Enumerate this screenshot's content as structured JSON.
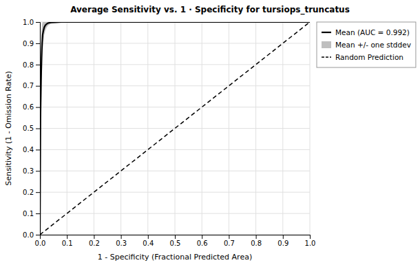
{
  "chart_data": {
    "type": "line",
    "title": "Average Sensitivity vs. 1 · Specificity for tursiops_truncatus",
    "xlabel": "1 - Specificity (Fractional Predicted Area)",
    "ylabel": "Sensitivity (1 - Omission Rate)",
    "xlim": [
      0.0,
      1.0
    ],
    "ylim": [
      0.0,
      1.0
    ],
    "xticks": [
      {
        "value": 0.0,
        "label": "0.0"
      },
      0.1,
      0.2,
      0.3,
      0.4,
      0.5,
      0.6,
      0.7,
      0.8,
      0.9,
      {
        "value": 1.0,
        "label": "1.0"
      }
    ],
    "yticks": [
      {
        "value": 0.0,
        "label": "0.0"
      },
      0.1,
      0.2,
      0.3,
      0.4,
      0.5,
      0.6,
      0.7,
      0.8,
      0.9,
      {
        "value": 1.0,
        "label": "1.0"
      }
    ],
    "grid": true,
    "legend": "right",
    "series": [
      {
        "name": "Mean (AUC = 0.992)",
        "type": "line",
        "color": "#000000",
        "x": [
          0.0,
          0.002,
          0.004,
          0.006,
          0.008,
          0.01,
          0.013,
          0.016,
          0.02,
          0.025,
          0.03,
          0.04,
          0.06,
          0.08,
          0.1,
          0.15,
          0.2,
          0.4,
          0.7,
          1.0
        ],
        "values": [
          0.0,
          0.55,
          0.72,
          0.83,
          0.9,
          0.94,
          0.96,
          0.975,
          0.985,
          0.991,
          0.995,
          0.998,
          0.999,
          1.0,
          1.0,
          1.0,
          1.0,
          1.0,
          1.0,
          1.0
        ]
      },
      {
        "name": "Mean +/- one stddev",
        "type": "area",
        "color": "#aaaaaa",
        "x": [
          0.0,
          0.002,
          0.004,
          0.006,
          0.008,
          0.01,
          0.013,
          0.016,
          0.02,
          0.025,
          0.03,
          0.04,
          0.06,
          0.08,
          0.1,
          0.15,
          0.2,
          0.4,
          0.7,
          1.0
        ],
        "lower": [
          0.0,
          0.38,
          0.55,
          0.68,
          0.79,
          0.87,
          0.91,
          0.94,
          0.96,
          0.975,
          0.984,
          0.992,
          0.997,
          1.0,
          1.0,
          1.0,
          1.0,
          1.0,
          1.0,
          1.0
        ],
        "upper": [
          0.0,
          0.7,
          0.87,
          0.96,
          0.99,
          1.0,
          1.0,
          1.0,
          1.0,
          1.0,
          1.0,
          1.0,
          1.0,
          1.0,
          1.0,
          1.0,
          1.0,
          1.0,
          1.0,
          1.0
        ]
      },
      {
        "name": "Random Prediction",
        "type": "line",
        "color": "#000000",
        "line_style": "dashed",
        "x": [
          0.0,
          0.1,
          0.2,
          0.3,
          0.4,
          0.5,
          0.6,
          0.7,
          0.8,
          0.9,
          1.0
        ],
        "values": [
          0.0,
          0.1,
          0.2,
          0.3,
          0.4,
          0.5,
          0.6,
          0.7,
          0.8,
          0.9,
          1.0
        ]
      }
    ]
  }
}
